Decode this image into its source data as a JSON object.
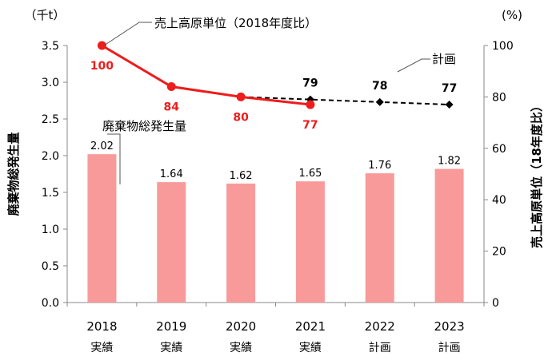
{
  "chart_data": {
    "type": "bar",
    "categories": [
      "2018",
      "2019",
      "2020",
      "2021",
      "2022",
      "2023"
    ],
    "category_sublabels": [
      "実績",
      "実績",
      "実績",
      "実績",
      "計画",
      "計画"
    ],
    "left_axis": {
      "label": "廃棄物総発生量",
      "unit": "（千t）",
      "ylim": [
        0,
        3.5
      ],
      "ticks": [
        "0.0",
        "0.5",
        "1.0",
        "1.5",
        "2.0",
        "2.5",
        "3.0",
        "3.5"
      ]
    },
    "right_axis": {
      "label": "売上高原単位（18年度比）",
      "unit": "(%)",
      "ylim": [
        0,
        100
      ],
      "ticks": [
        "0",
        "20",
        "40",
        "60",
        "80",
        "100"
      ]
    },
    "bar_series": {
      "name": "廃棄物総発生量",
      "values": [
        2.02,
        1.64,
        1.62,
        1.65,
        1.76,
        1.82
      ],
      "labels": [
        "2.02",
        "1.64",
        "1.62",
        "1.65",
        "1.76",
        "1.82"
      ],
      "color": "#f99a9a"
    },
    "line_actual": {
      "name": "売上高原単位（2018年度比）",
      "x": [
        "2018",
        "2019",
        "2020",
        "2021"
      ],
      "values": [
        100,
        84,
        80,
        77
      ],
      "labels": [
        "100",
        "84",
        "80",
        "77"
      ],
      "color": "#ee1c1c"
    },
    "line_plan": {
      "name": "計画",
      "x": [
        "2020",
        "2021",
        "2022",
        "2023"
      ],
      "values": [
        80,
        79,
        78,
        77
      ],
      "labels": [
        "",
        "79",
        "78",
        "77"
      ],
      "color": "#000000",
      "style": "dashed"
    },
    "grid": false,
    "legend": "callout-labels"
  }
}
